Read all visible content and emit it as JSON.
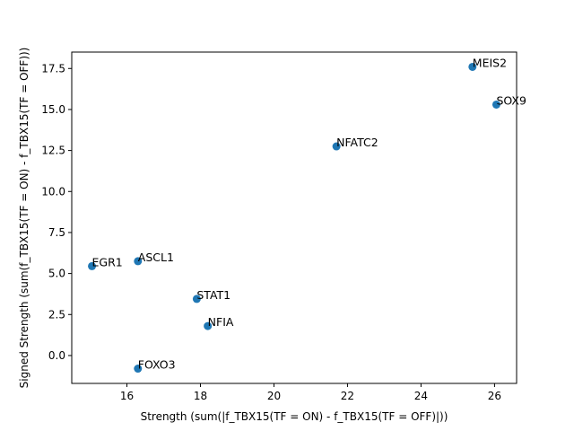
{
  "chart_data": {
    "type": "scatter",
    "xlabel": "Strength (sum(|f_TBX15(TF = ON) - f_TBX15(TF = OFF)|))",
    "ylabel": "Signed Strength (sum(f_TBX15(TF = ON) - f_TBX15(TF = OFF)))",
    "xlim": [
      14.5,
      26.6
    ],
    "ylim": [
      -1.7,
      18.5
    ],
    "xticks": [
      16,
      18,
      20,
      22,
      24,
      26
    ],
    "xtick_labels": [
      "16",
      "18",
      "20",
      "22",
      "24",
      "26"
    ],
    "yticks": [
      0.0,
      2.5,
      5.0,
      7.5,
      10.0,
      12.5,
      15.0,
      17.5
    ],
    "ytick_labels": [
      "0.0",
      "2.5",
      "5.0",
      "7.5",
      "10.0",
      "12.5",
      "15.0",
      "17.5"
    ],
    "grid": false,
    "marker_color": "#1f77b4",
    "points": [
      {
        "label": "MEIS2",
        "x": 25.4,
        "y": 17.6
      },
      {
        "label": "SOX9",
        "x": 26.05,
        "y": 15.3
      },
      {
        "label": "NFATC2",
        "x": 21.7,
        "y": 12.75
      },
      {
        "label": "EGR1",
        "x": 15.05,
        "y": 5.45
      },
      {
        "label": "ASCL1",
        "x": 16.3,
        "y": 5.75
      },
      {
        "label": "STAT1",
        "x": 17.9,
        "y": 3.45
      },
      {
        "label": "NFIA",
        "x": 18.2,
        "y": 1.8
      },
      {
        "label": "FOXO3",
        "x": 16.3,
        "y": -0.8
      }
    ]
  }
}
